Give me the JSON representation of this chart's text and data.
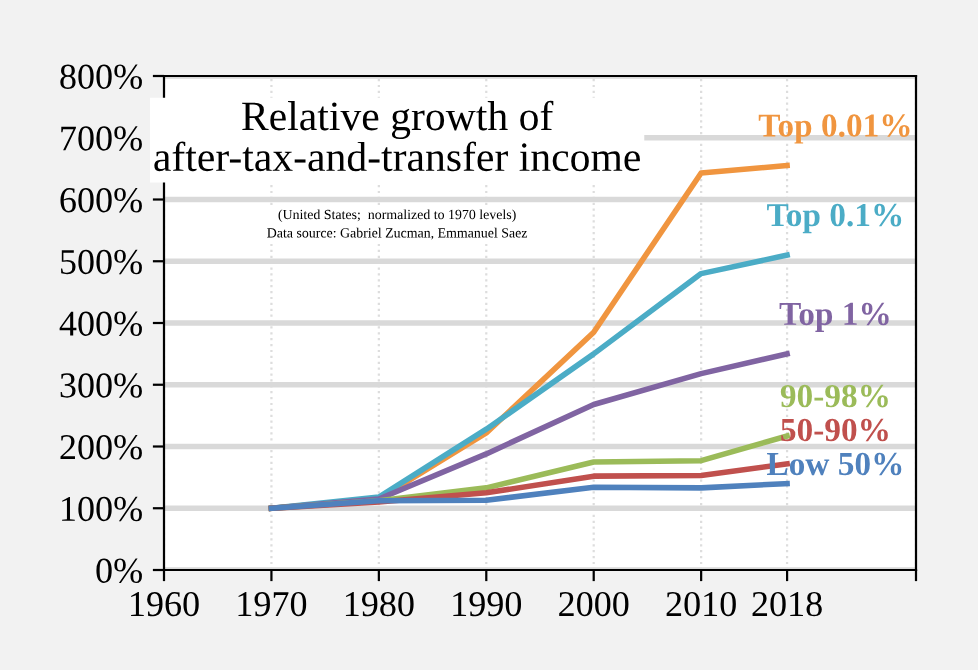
{
  "chart_data": {
    "type": "line",
    "title": "Relative growth of\nafter-tax-and-transfer income",
    "subtitle": "(United States;  normalized to 1970 levels)\nData source: Gabriel Zucman, Emmanuel Saez",
    "x": [
      1970,
      1980,
      1990,
      2000,
      2010,
      2018
    ],
    "series": [
      {
        "name": "Top 0.01%",
        "color": "#f0953f",
        "values": [
          100,
          115,
          222,
          385,
          643,
          655
        ]
      },
      {
        "name": "Top 0.1%",
        "color": "#4bacc6",
        "values": [
          100,
          118,
          228,
          350,
          480,
          510
        ]
      },
      {
        "name": "Top 1%",
        "color": "#8064a2",
        "values": [
          100,
          115,
          188,
          268,
          318,
          350
        ]
      },
      {
        "name": "90-98%",
        "color": "#9bbb59",
        "values": [
          100,
          112,
          133,
          175,
          177,
          217
        ]
      },
      {
        "name": "50-90%",
        "color": "#c0504d",
        "values": [
          100,
          110,
          125,
          152,
          153,
          172
        ]
      },
      {
        "name": "Low 50%",
        "color": "#4f81bd",
        "values": [
          100,
          112,
          113,
          134,
          133,
          140
        ]
      }
    ],
    "xlim": [
      1960,
      2030
    ],
    "xticks": [
      1960,
      1970,
      1980,
      1990,
      2000,
      2010,
      2018,
      {
        "value": 2030,
        "label": null
      }
    ],
    "ylim": [
      0,
      800
    ],
    "yticks": [
      {
        "value": 0,
        "label": "0%"
      },
      {
        "value": 100,
        "label": "100%"
      },
      {
        "value": 200,
        "label": "200%"
      },
      {
        "value": 300,
        "label": "300%"
      },
      {
        "value": 400,
        "label": "400%"
      },
      {
        "value": 500,
        "label": "500%"
      },
      {
        "value": 600,
        "label": "600%"
      },
      {
        "value": 700,
        "label": "700%"
      },
      {
        "value": 800,
        "label": "800%"
      }
    ],
    "grid": true,
    "legend": false,
    "marker": "none",
    "line_style": "solid"
  }
}
